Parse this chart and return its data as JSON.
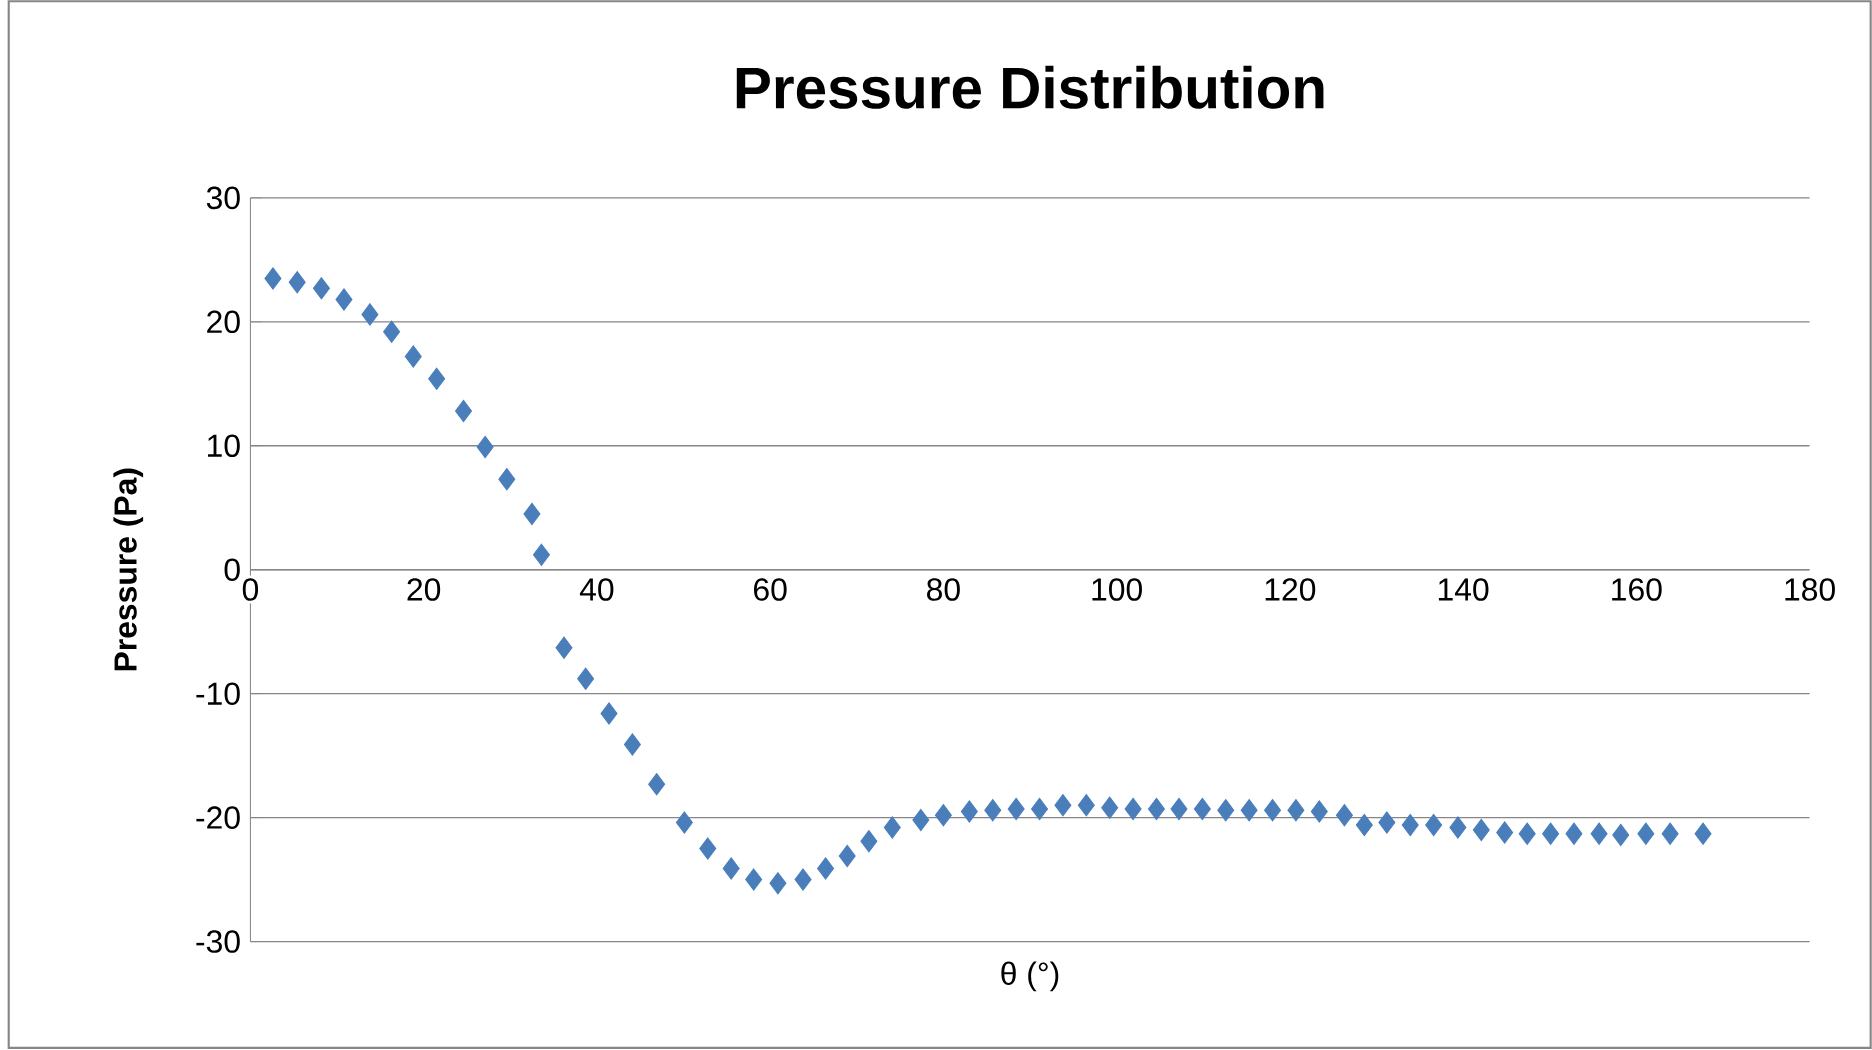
{
  "chart_data": {
    "type": "scatter",
    "title": "Pressure  Distribution",
    "xlabel": "θ (°)",
    "ylabel": "Pressure (Pa)",
    "xlim": [
      0,
      180
    ],
    "ylim": [
      -30,
      30
    ],
    "xticks": [
      0,
      20,
      40,
      60,
      80,
      100,
      120,
      140,
      160,
      180
    ],
    "yticks": [
      -30,
      -20,
      -10,
      0,
      10,
      20,
      30
    ],
    "grid": "y",
    "marker": "diamond",
    "series": [
      {
        "color": "#4a7ebb",
        "x": [
          2.6,
          5.4,
          8.2,
          10.8,
          13.8,
          16.3,
          18.8,
          21.5,
          24.6,
          27.1,
          29.6,
          32.5,
          33.6,
          36.2,
          38.7,
          41.4,
          44.1,
          46.9,
          50.1,
          52.8,
          55.5,
          58.1,
          60.9,
          63.8,
          66.4,
          68.9,
          71.4,
          74.1,
          77.4,
          80.0,
          83.0,
          85.7,
          88.4,
          91.1,
          93.8,
          96.5,
          99.2,
          101.9,
          104.6,
          107.2,
          109.9,
          112.6,
          115.3,
          118.0,
          120.7,
          123.4,
          126.3,
          128.6,
          131.2,
          133.9,
          136.6,
          139.4,
          142.1,
          144.8,
          147.4,
          150.1,
          152.8,
          155.7,
          158.2,
          161.1,
          163.9,
          167.7
        ],
        "values": [
          23.5,
          23.2,
          22.7,
          21.8,
          20.6,
          19.2,
          17.2,
          15.4,
          12.8,
          9.9,
          7.3,
          4.5,
          1.2,
          -6.3,
          -8.8,
          -11.6,
          -14.1,
          -17.3,
          -20.4,
          -22.5,
          -24.1,
          -25.0,
          -25.3,
          -25.0,
          -24.1,
          -23.1,
          -21.9,
          -20.8,
          -20.2,
          -19.8,
          -19.5,
          -19.4,
          -19.3,
          -19.3,
          -19.0,
          -19.0,
          -19.2,
          -19.3,
          -19.3,
          -19.3,
          -19.3,
          -19.4,
          -19.4,
          -19.4,
          -19.4,
          -19.5,
          -19.8,
          -20.6,
          -20.4,
          -20.6,
          -20.6,
          -20.8,
          -21.0,
          -21.2,
          -21.3,
          -21.3,
          -21.3,
          -21.3,
          -21.4,
          -21.3,
          -21.3,
          -21.3
        ]
      }
    ]
  }
}
